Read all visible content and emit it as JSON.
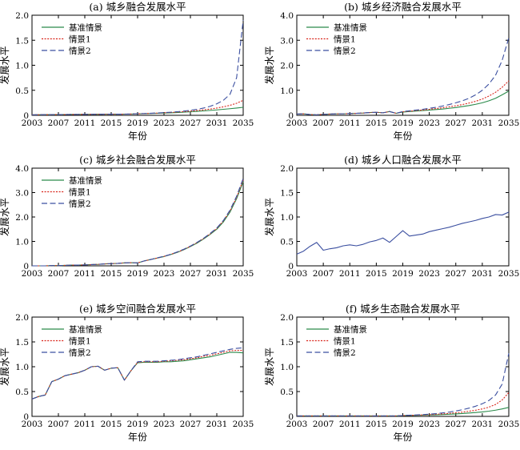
{
  "colors": {
    "baseline": "#2a8a4a",
    "scenario1": "#d9261c",
    "scenario2": "#3b4fa0",
    "single": "#3b4fa0"
  },
  "chart_data": [
    {
      "type": "line",
      "title": "(a) 城乡融合发展水平",
      "xlabel": "年份",
      "ylabel": "发展水平",
      "xlim": [
        2003,
        2035
      ],
      "ylim": [
        0,
        2.0
      ],
      "xticks": [
        "2003",
        "2007",
        "2011",
        "2015",
        "2019",
        "2023",
        "2027",
        "2031",
        "2035"
      ],
      "yticks": [
        "0",
        "0.5",
        "1.0",
        "1.5",
        "2.0"
      ],
      "legend_position": "top-left",
      "x": [
        2003,
        2004,
        2005,
        2006,
        2007,
        2008,
        2009,
        2010,
        2011,
        2012,
        2013,
        2014,
        2015,
        2016,
        2017,
        2018,
        2019,
        2020,
        2021,
        2022,
        2023,
        2024,
        2025,
        2026,
        2027,
        2028,
        2029,
        2030,
        2031,
        2032,
        2033,
        2034,
        2035
      ],
      "series": [
        {
          "name": "基准情景",
          "style": "solid",
          "values": [
            0.01,
            0.012,
            0.013,
            0.014,
            0.015,
            0.016,
            0.017,
            0.018,
            0.019,
            0.02,
            0.021,
            0.022,
            0.023,
            0.023,
            0.024,
            0.026,
            0.03,
            0.033,
            0.036,
            0.04,
            0.044,
            0.049,
            0.055,
            0.062,
            0.07,
            0.079,
            0.088,
            0.098,
            0.108,
            0.12,
            0.132,
            0.145,
            0.16
          ]
        },
        {
          "name": "情景1",
          "style": "dotted",
          "values": [
            0.01,
            0.012,
            0.013,
            0.014,
            0.015,
            0.016,
            0.017,
            0.018,
            0.019,
            0.02,
            0.021,
            0.022,
            0.023,
            0.023,
            0.024,
            0.026,
            0.031,
            0.035,
            0.039,
            0.044,
            0.05,
            0.056,
            0.064,
            0.073,
            0.083,
            0.095,
            0.109,
            0.125,
            0.145,
            0.17,
            0.2,
            0.24,
            0.3
          ]
        },
        {
          "name": "情景2",
          "style": "dashed",
          "values": [
            0.01,
            0.012,
            0.013,
            0.014,
            0.015,
            0.016,
            0.017,
            0.018,
            0.019,
            0.02,
            0.021,
            0.022,
            0.023,
            0.023,
            0.024,
            0.026,
            0.032,
            0.036,
            0.041,
            0.047,
            0.054,
            0.062,
            0.072,
            0.085,
            0.1,
            0.12,
            0.145,
            0.18,
            0.23,
            0.3,
            0.42,
            0.75,
            1.9
          ]
        }
      ]
    },
    {
      "type": "line",
      "title": "(b) 城乡经济融合发展水平",
      "xlabel": "年份",
      "ylabel": "发展水平",
      "xlim": [
        2003,
        2035
      ],
      "ylim": [
        0,
        4.0
      ],
      "xticks": [
        "2003",
        "2007",
        "2011",
        "2015",
        "2019",
        "2023",
        "2027",
        "2031",
        "2035"
      ],
      "yticks": [
        "0",
        "1.0",
        "2.0",
        "3.0",
        "4.0"
      ],
      "legend_position": "top-left",
      "x": [
        2003,
        2004,
        2005,
        2006,
        2007,
        2008,
        2009,
        2010,
        2011,
        2012,
        2013,
        2014,
        2015,
        2016,
        2017,
        2018,
        2019,
        2020,
        2021,
        2022,
        2023,
        2024,
        2025,
        2026,
        2027,
        2028,
        2029,
        2030,
        2031,
        2032,
        2033,
        2034,
        2035
      ],
      "series": [
        {
          "name": "基准情景",
          "style": "solid",
          "values": [
            0.05,
            0.06,
            0.03,
            0.02,
            0.04,
            0.05,
            0.06,
            0.06,
            0.07,
            0.08,
            0.09,
            0.11,
            0.12,
            0.1,
            0.15,
            0.08,
            0.13,
            0.15,
            0.17,
            0.19,
            0.21,
            0.23,
            0.25,
            0.28,
            0.31,
            0.35,
            0.39,
            0.44,
            0.5,
            0.58,
            0.68,
            0.82,
            0.97
          ]
        },
        {
          "name": "情景1",
          "style": "dotted",
          "values": [
            0.05,
            0.06,
            0.03,
            0.02,
            0.04,
            0.05,
            0.06,
            0.06,
            0.07,
            0.08,
            0.09,
            0.11,
            0.12,
            0.1,
            0.15,
            0.08,
            0.14,
            0.16,
            0.19,
            0.21,
            0.24,
            0.27,
            0.3,
            0.34,
            0.38,
            0.43,
            0.49,
            0.56,
            0.65,
            0.77,
            0.92,
            1.12,
            1.38
          ]
        },
        {
          "name": "情景2",
          "style": "dashed",
          "values": [
            0.05,
            0.06,
            0.03,
            0.02,
            0.04,
            0.05,
            0.06,
            0.06,
            0.07,
            0.08,
            0.09,
            0.11,
            0.12,
            0.1,
            0.15,
            0.08,
            0.15,
            0.18,
            0.21,
            0.24,
            0.28,
            0.32,
            0.37,
            0.43,
            0.5,
            0.58,
            0.68,
            0.82,
            1.0,
            1.25,
            1.6,
            2.2,
            3.1
          ]
        }
      ]
    },
    {
      "type": "line",
      "title": "(c) 城乡社会融合发展水平",
      "xlabel": "",
      "ylabel": "发展水平",
      "xlim": [
        2003,
        2035
      ],
      "ylim": [
        0,
        4.0
      ],
      "xticks": [
        "2003",
        "2007",
        "2011",
        "2015",
        "2019",
        "2023",
        "2027",
        "2031",
        "2035"
      ],
      "yticks": [
        "0",
        "1.0",
        "2.0",
        "3.0",
        "4.0"
      ],
      "legend_position": "top-left",
      "x": [
        2003,
        2004,
        2005,
        2006,
        2007,
        2008,
        2009,
        2010,
        2011,
        2012,
        2013,
        2014,
        2015,
        2016,
        2017,
        2018,
        2019,
        2020,
        2021,
        2022,
        2023,
        2024,
        2025,
        2026,
        2027,
        2028,
        2029,
        2030,
        2031,
        2032,
        2033,
        2034,
        2035
      ],
      "series": [
        {
          "name": "基准情景",
          "style": "solid",
          "values": [
            0.0,
            0.0,
            0.0,
            0.01,
            0.01,
            0.02,
            0.03,
            0.03,
            0.04,
            0.05,
            0.06,
            0.08,
            0.09,
            0.1,
            0.12,
            0.13,
            0.12,
            0.2,
            0.26,
            0.32,
            0.38,
            0.46,
            0.55,
            0.66,
            0.79,
            0.93,
            1.1,
            1.29,
            1.5,
            1.8,
            2.2,
            2.75,
            3.45
          ]
        },
        {
          "name": "情景1",
          "style": "dotted",
          "values": [
            0.0,
            0.0,
            0.0,
            0.01,
            0.01,
            0.02,
            0.03,
            0.03,
            0.04,
            0.05,
            0.06,
            0.08,
            0.09,
            0.1,
            0.12,
            0.13,
            0.12,
            0.2,
            0.26,
            0.32,
            0.39,
            0.47,
            0.56,
            0.67,
            0.8,
            0.95,
            1.12,
            1.31,
            1.53,
            1.84,
            2.25,
            2.8,
            3.52
          ]
        },
        {
          "name": "情景2",
          "style": "dashed",
          "values": [
            0.0,
            0.0,
            0.0,
            0.01,
            0.01,
            0.02,
            0.03,
            0.03,
            0.04,
            0.05,
            0.06,
            0.08,
            0.09,
            0.1,
            0.12,
            0.13,
            0.12,
            0.2,
            0.26,
            0.33,
            0.39,
            0.47,
            0.57,
            0.68,
            0.81,
            0.96,
            1.13,
            1.33,
            1.55,
            1.86,
            2.28,
            2.85,
            3.58
          ]
        }
      ]
    },
    {
      "type": "line",
      "title": "(d) 城乡人口融合发展水平",
      "xlabel": "",
      "ylabel": "发展水平",
      "xlim": [
        2003,
        2035
      ],
      "ylim": [
        0,
        2.0
      ],
      "xticks": [
        "2003",
        "2007",
        "2011",
        "2015",
        "2019",
        "2023",
        "2027",
        "2031",
        "2035"
      ],
      "yticks": [
        "0",
        "0.5",
        "1.0",
        "1.5",
        "2.0"
      ],
      "legend_position": "none",
      "x": [
        2003,
        2004,
        2005,
        2006,
        2007,
        2008,
        2009,
        2010,
        2011,
        2012,
        2013,
        2014,
        2015,
        2016,
        2017,
        2018,
        2019,
        2020,
        2021,
        2022,
        2023,
        2024,
        2025,
        2026,
        2027,
        2028,
        2029,
        2030,
        2031,
        2032,
        2033,
        2034,
        2035
      ],
      "series": [
        {
          "style": "solid",
          "values": [
            0.24,
            0.3,
            0.4,
            0.48,
            0.32,
            0.35,
            0.37,
            0.41,
            0.43,
            0.41,
            0.44,
            0.49,
            0.52,
            0.57,
            0.48,
            0.6,
            0.72,
            0.61,
            0.63,
            0.65,
            0.7,
            0.73,
            0.76,
            0.79,
            0.83,
            0.87,
            0.9,
            0.93,
            0.97,
            1.0,
            1.05,
            1.04,
            1.1
          ]
        }
      ]
    },
    {
      "type": "line",
      "title": "(e) 城乡空间融合发展水平",
      "xlabel": "年份",
      "ylabel": "发展水平",
      "xlim": [
        2003,
        2035
      ],
      "ylim": [
        0,
        2.0
      ],
      "xticks": [
        "2003",
        "2007",
        "2011",
        "2015",
        "2019",
        "2023",
        "2027",
        "2031",
        "2035"
      ],
      "yticks": [
        "0",
        "0.5",
        "1.0",
        "1.5",
        "2.0"
      ],
      "legend_position": "top-left",
      "x": [
        2003,
        2004,
        2005,
        2006,
        2007,
        2008,
        2009,
        2010,
        2011,
        2012,
        2013,
        2014,
        2015,
        2016,
        2017,
        2018,
        2019,
        2020,
        2021,
        2022,
        2023,
        2024,
        2025,
        2026,
        2027,
        2028,
        2029,
        2030,
        2031,
        2032,
        2033,
        2034,
        2035
      ],
      "series": [
        {
          "name": "基准情景",
          "style": "solid",
          "values": [
            0.35,
            0.4,
            0.43,
            0.7,
            0.75,
            0.82,
            0.85,
            0.88,
            0.93,
            1.0,
            1.01,
            0.93,
            0.97,
            0.98,
            0.73,
            0.92,
            1.08,
            1.09,
            1.09,
            1.09,
            1.1,
            1.1,
            1.11,
            1.12,
            1.14,
            1.16,
            1.18,
            1.2,
            1.23,
            1.26,
            1.29,
            1.29,
            1.28
          ]
        },
        {
          "name": "情景1",
          "style": "dotted",
          "values": [
            0.35,
            0.4,
            0.43,
            0.7,
            0.75,
            0.82,
            0.85,
            0.88,
            0.93,
            1.0,
            1.01,
            0.93,
            0.97,
            0.98,
            0.73,
            0.92,
            1.09,
            1.1,
            1.1,
            1.1,
            1.11,
            1.12,
            1.13,
            1.14,
            1.16,
            1.18,
            1.21,
            1.23,
            1.26,
            1.29,
            1.32,
            1.33,
            1.33
          ]
        },
        {
          "name": "情景2",
          "style": "dashed",
          "values": [
            0.35,
            0.4,
            0.43,
            0.7,
            0.75,
            0.82,
            0.85,
            0.88,
            0.93,
            1.0,
            1.01,
            0.93,
            0.97,
            0.98,
            0.73,
            0.92,
            1.1,
            1.11,
            1.11,
            1.11,
            1.12,
            1.13,
            1.14,
            1.16,
            1.18,
            1.2,
            1.23,
            1.26,
            1.29,
            1.32,
            1.35,
            1.37,
            1.38
          ]
        }
      ]
    },
    {
      "type": "line",
      "title": "(f) 城乡生态融合发展水平",
      "xlabel": "年份",
      "ylabel": "发展水平",
      "xlim": [
        2003,
        2035
      ],
      "ylim": [
        0,
        2.0
      ],
      "xticks": [
        "2003",
        "2007",
        "2011",
        "2015",
        "2019",
        "2023",
        "2027",
        "2031",
        "2035"
      ],
      "yticks": [
        "0",
        "0.5",
        "1.0",
        "1.5",
        "2.0"
      ],
      "legend_position": "top-left",
      "x": [
        2003,
        2004,
        2005,
        2006,
        2007,
        2008,
        2009,
        2010,
        2011,
        2012,
        2013,
        2014,
        2015,
        2016,
        2017,
        2018,
        2019,
        2020,
        2021,
        2022,
        2023,
        2024,
        2025,
        2026,
        2027,
        2028,
        2029,
        2030,
        2031,
        2032,
        2033,
        2034,
        2035
      ],
      "series": [
        {
          "name": "基准情景",
          "style": "solid",
          "values": [
            0.01,
            0.01,
            0.01,
            0.01,
            0.01,
            0.01,
            0.01,
            0.01,
            0.01,
            0.01,
            0.01,
            0.01,
            0.01,
            0.01,
            0.01,
            0.01,
            0.015,
            0.018,
            0.021,
            0.024,
            0.028,
            0.032,
            0.037,
            0.043,
            0.05,
            0.058,
            0.067,
            0.078,
            0.09,
            0.105,
            0.125,
            0.15,
            0.18
          ]
        },
        {
          "name": "情景1",
          "style": "dotted",
          "values": [
            0.01,
            0.01,
            0.01,
            0.01,
            0.01,
            0.01,
            0.01,
            0.01,
            0.01,
            0.01,
            0.01,
            0.01,
            0.01,
            0.01,
            0.01,
            0.01,
            0.016,
            0.02,
            0.024,
            0.029,
            0.035,
            0.042,
            0.05,
            0.06,
            0.072,
            0.086,
            0.103,
            0.124,
            0.15,
            0.185,
            0.24,
            0.33,
            0.48
          ]
        },
        {
          "name": "情景2",
          "style": "dashed",
          "values": [
            0.01,
            0.01,
            0.01,
            0.01,
            0.01,
            0.01,
            0.01,
            0.01,
            0.01,
            0.01,
            0.01,
            0.01,
            0.01,
            0.01,
            0.01,
            0.01,
            0.018,
            0.023,
            0.029,
            0.036,
            0.045,
            0.056,
            0.07,
            0.087,
            0.108,
            0.134,
            0.166,
            0.205,
            0.255,
            0.32,
            0.43,
            0.65,
            1.27
          ]
        }
      ]
    }
  ]
}
